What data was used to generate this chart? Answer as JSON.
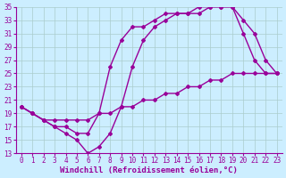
{
  "xlabel": "Windchill (Refroidissement éolien,°C)",
  "bg_color": "#cceeff",
  "line_color": "#990099",
  "xlim": [
    -0.5,
    23.5
  ],
  "ylim": [
    13,
    35
  ],
  "xticks": [
    0,
    1,
    2,
    3,
    4,
    5,
    6,
    7,
    8,
    9,
    10,
    11,
    12,
    13,
    14,
    15,
    16,
    17,
    18,
    19,
    20,
    21,
    22,
    23
  ],
  "yticks": [
    13,
    15,
    17,
    19,
    21,
    23,
    25,
    27,
    29,
    31,
    33,
    35
  ],
  "line1_x": [
    0,
    1,
    2,
    3,
    4,
    5,
    6,
    7,
    8,
    9,
    10,
    11,
    12,
    13,
    14,
    15,
    16,
    17,
    18,
    19,
    20,
    21,
    22,
    23
  ],
  "line1_y": [
    20,
    19,
    18,
    18,
    18,
    18,
    18,
    19,
    19,
    20,
    20,
    21,
    21,
    22,
    22,
    23,
    23,
    24,
    24,
    25,
    25,
    25,
    25,
    25
  ],
  "line2_x": [
    0,
    1,
    2,
    3,
    4,
    5,
    6,
    7,
    8,
    9,
    10,
    11,
    12,
    13,
    14,
    15,
    16,
    17,
    18,
    19,
    20,
    21,
    22,
    23
  ],
  "line2_y": [
    20,
    19,
    18,
    17,
    16,
    15,
    13,
    14,
    16,
    20,
    26,
    30,
    32,
    33,
    34,
    34,
    34,
    35,
    35,
    35,
    33,
    31,
    27,
    25
  ],
  "line3_x": [
    0,
    1,
    2,
    3,
    4,
    5,
    6,
    7,
    8,
    9,
    10,
    11,
    12,
    13,
    14,
    15,
    16,
    17,
    18,
    19,
    20,
    21,
    22,
    23
  ],
  "line3_y": [
    20,
    19,
    18,
    17,
    17,
    16,
    16,
    19,
    26,
    30,
    32,
    32,
    33,
    34,
    34,
    34,
    35,
    35,
    35,
    35,
    31,
    27,
    25,
    25
  ],
  "grid_color": "#aacccc",
  "marker": "D",
  "marker_size": 2,
  "linewidth": 1.0,
  "xlabel_fontsize": 6.5,
  "tick_fontsize": 5.5
}
